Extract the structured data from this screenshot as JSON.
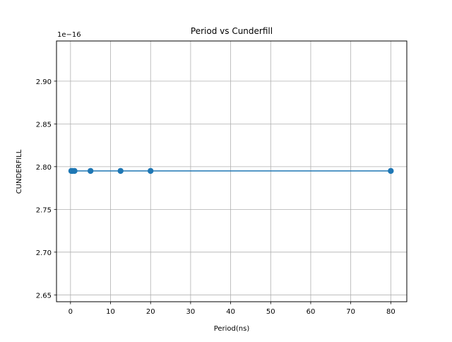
{
  "chart_data": {
    "type": "line",
    "title": "Period vs Cunderfill",
    "xlabel": "Period(ns)",
    "ylabel": "CUNDERFILL",
    "y_offset_label": "1e−16",
    "xlim": [
      -3.5,
      84
    ],
    "ylim": [
      2.642,
      2.947
    ],
    "x_ticks": [
      0,
      10,
      20,
      30,
      40,
      50,
      60,
      70,
      80
    ],
    "x_tick_labels": [
      "0",
      "10",
      "20",
      "30",
      "40",
      "50",
      "60",
      "70",
      "80"
    ],
    "y_ticks": [
      2.65,
      2.7,
      2.75,
      2.8,
      2.85,
      2.9
    ],
    "y_tick_labels": [
      "2.65",
      "2.70",
      "2.75",
      "2.80",
      "2.85",
      "2.90"
    ],
    "grid": true,
    "series": [
      {
        "color": "#1f77b4",
        "marker": "circle",
        "x": [
          0.2,
          0.5,
          1,
          5,
          12.5,
          20,
          80
        ],
        "y": [
          2.795,
          2.795,
          2.795,
          2.795,
          2.795,
          2.795,
          2.795
        ]
      }
    ]
  }
}
